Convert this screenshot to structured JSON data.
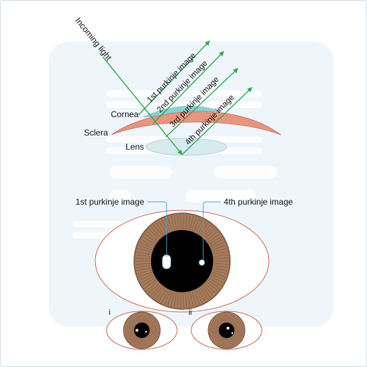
{
  "labels": {
    "incoming_light": "Incoming light",
    "cornea": "Cornea",
    "sclera": "Sclera",
    "lens": "Lens",
    "reflection_1": "1st purkinje image",
    "reflection_2": "2nd purkinje image",
    "reflection_3": "3rd purkinje image",
    "reflection_4": "4th purkinje image",
    "eye_callout_1": "1st purkinje image",
    "eye_callout_4": "4th purkinje image",
    "eye_i": "i",
    "eye_ii": "ii"
  },
  "colors": {
    "panel_background": "#eef6fc",
    "light_ray": "#2fa84f",
    "cornea": "#8ccfd2",
    "sclera": "#e8957e",
    "lens": "#d7ebef",
    "iris": "#a47a5c",
    "pupil": "#000000",
    "eye_outline": "#c96650",
    "callout_line": "#4aa2cf"
  }
}
